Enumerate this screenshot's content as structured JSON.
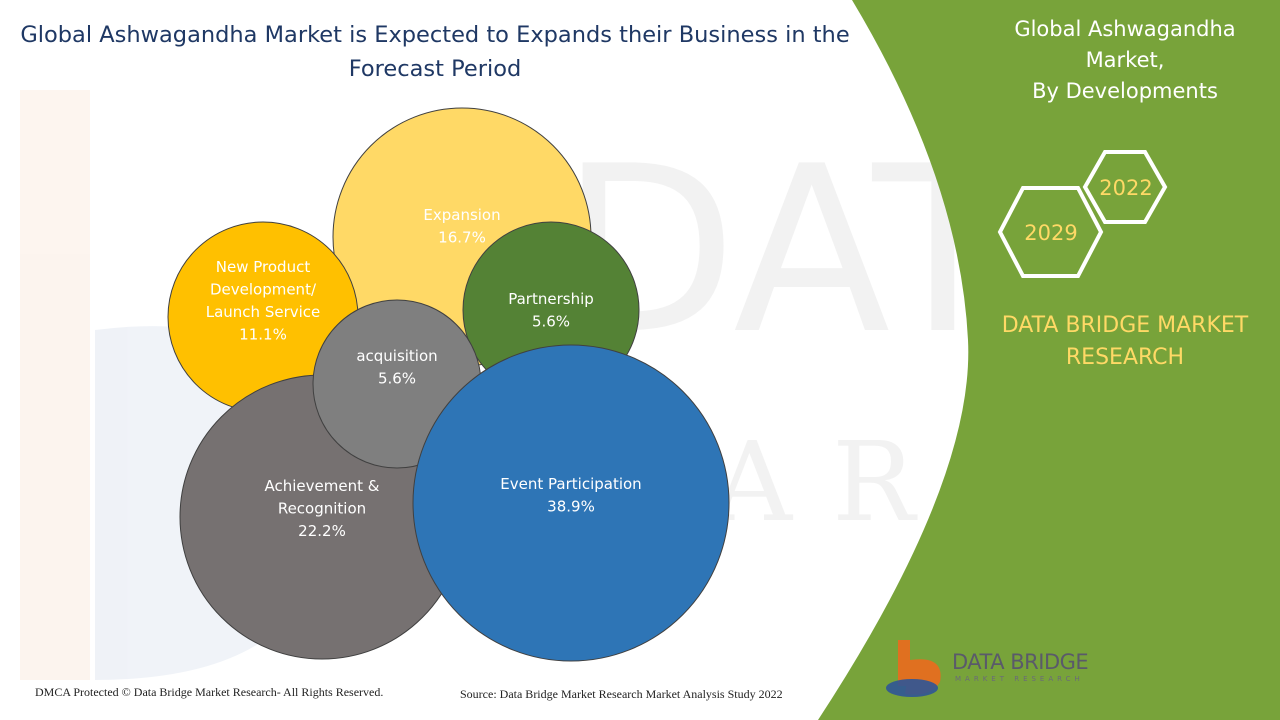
{
  "header": {
    "title": "Global Ashwagandha Market is Expected to Expands their Business in the Forecast Period"
  },
  "side_panel": {
    "title_line1": "Global Ashwagandha Market,",
    "title_line2": "By Developments",
    "year_start": "2022",
    "year_end": "2029",
    "brand_line1": "DATA BRIDGE MARKET",
    "brand_line2": "RESEARCH",
    "panel_color": "#78a33a",
    "hex_color": "#ffd966"
  },
  "logo": {
    "name": "DATA BRIDGE",
    "tagline": "MARKET RESEARCH"
  },
  "footer": {
    "copyright": "DMCA Protected © Data Bridge Market Research- All Rights Reserved.",
    "source": "Source: Data Bridge Market Research Market Analysis Study 2022"
  },
  "chart_data": {
    "type": "bubble",
    "title": "Global Ashwagandha Market is Expected to Expands their Business in the Forecast Period",
    "unit": "%",
    "segments": [
      {
        "label_lines": [
          "Expansion"
        ],
        "value": 16.7,
        "value_label": "16.7%",
        "color": "#ffd966",
        "text_color": "#ffffff"
      },
      {
        "label_lines": [
          "New Product",
          "Development/",
          "Launch Service"
        ],
        "value": 11.1,
        "value_label": "11.1%",
        "color": "#ffc000",
        "text_color": "#ffffff"
      },
      {
        "label_lines": [
          "Partnership"
        ],
        "value": 5.6,
        "value_label": "5.6%",
        "color": "#548235",
        "text_color": "#ffffff"
      },
      {
        "label_lines": [
          "Achievement &",
          "Recognition"
        ],
        "value": 22.2,
        "value_label": "22.2%",
        "color": "#767171",
        "text_color": "#ffffff"
      },
      {
        "label_lines": [
          "acquisition"
        ],
        "value": 5.6,
        "value_label": "5.6%",
        "color": "#7f7f7f",
        "text_color": "#ffffff"
      },
      {
        "label_lines": [
          "Event Participation"
        ],
        "value": 38.9,
        "value_label": "38.9%",
        "color": "#2e75b6",
        "text_color": "#ffffff"
      }
    ]
  }
}
